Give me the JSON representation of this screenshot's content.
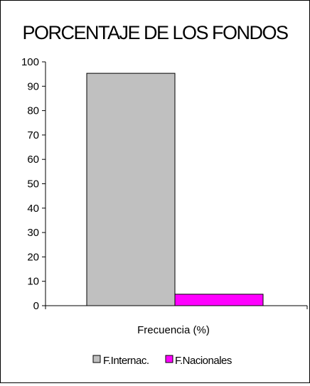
{
  "chart_data": {
    "type": "bar",
    "title": "PORCENTAJE DE LOS FONDOS",
    "xlabel": "Frecuencia (%)",
    "ylabel": "",
    "categories": [
      "Frecuencia (%)"
    ],
    "series": [
      {
        "name": "F.Internac.",
        "values": [
          95.3
        ],
        "color": "#c0c0c0"
      },
      {
        "name": "F.Nacionales",
        "values": [
          4.7
        ],
        "color": "#ff00ff"
      }
    ],
    "ylim": [
      0,
      100
    ],
    "yticks": [
      "0",
      "10",
      "20",
      "30",
      "40",
      "50",
      "60",
      "70",
      "80",
      "90",
      "100"
    ],
    "grid": false,
    "legend_position": "bottom"
  }
}
